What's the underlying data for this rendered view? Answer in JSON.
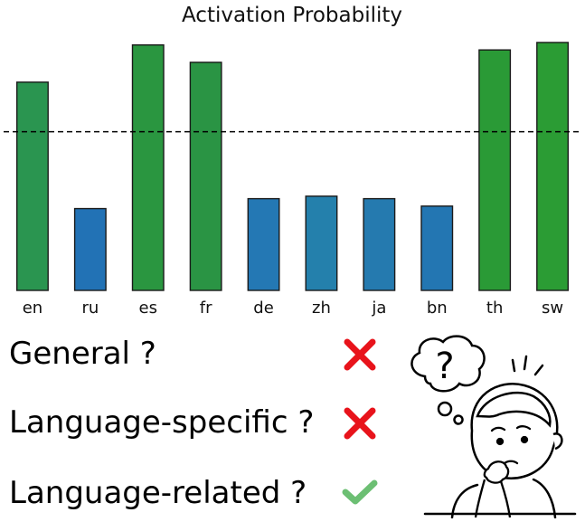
{
  "chart_data": {
    "type": "bar",
    "title": "Activation Probability",
    "categories": [
      "en",
      "ru",
      "es",
      "fr",
      "de",
      "zh",
      "ja",
      "bn",
      "th",
      "sw"
    ],
    "values": [
      0.84,
      0.33,
      0.99,
      0.92,
      0.37,
      0.38,
      0.37,
      0.34,
      0.97,
      1.0
    ],
    "bar_colors": [
      "#2a9550",
      "#2272b5",
      "#2a9640",
      "#2a9444",
      "#2478b4",
      "#2480ac",
      "#257aaf",
      "#2376b2",
      "#2a9a36",
      "#2b9c34"
    ],
    "threshold": 0.64,
    "ylim": [
      0,
      1.04
    ],
    "xlabel": "",
    "ylabel": "",
    "legend": "none",
    "grid": false
  },
  "questions": [
    {
      "label": "General ?",
      "verdict": "cross"
    },
    {
      "label": "Language-specific ?",
      "verdict": "cross"
    },
    {
      "label": "Language-related ?",
      "verdict": "check"
    }
  ],
  "thinker": {
    "bubble_text": "?"
  },
  "colors": {
    "cross": "#e8131b",
    "check": "#6cbf73",
    "line": "#000000"
  }
}
